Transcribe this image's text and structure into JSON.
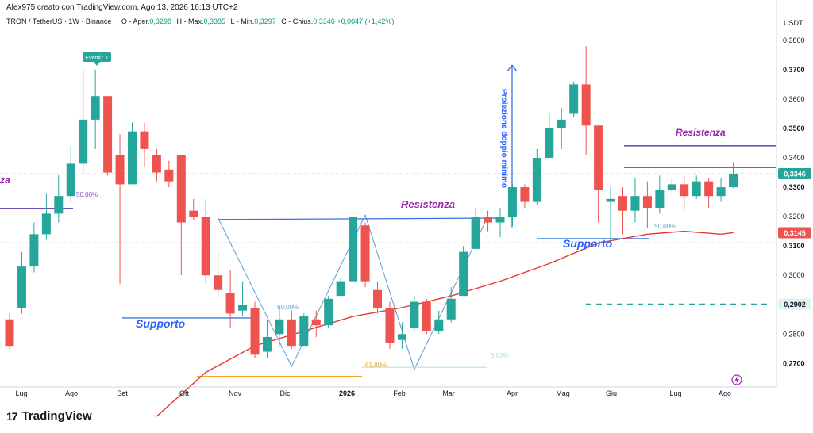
{
  "header": {
    "author_line": "Alex975 creato con TradingView.com, Ago 13, 2026 16:13 UTC+2",
    "symbol": "TRON / TetherUS · 1W · Binance",
    "open_label": "O - Aper.",
    "open": "0,3298",
    "high_label": "H - Max.",
    "high": "0,3385",
    "low_label": "L - Min.",
    "low": "0,3297",
    "close_label": "C - Chius.",
    "close": "0,3346",
    "change": "+0,0047 (+1,42%)"
  },
  "brand": {
    "logo_mark": "17",
    "name": "TradingView"
  },
  "colors": {
    "up": "#26a69a",
    "down": "#ef5350",
    "ma": "#e53935",
    "support": "#3a7bd5",
    "resistance_text": "#9c27b0"
  },
  "chart_data": {
    "type": "candlestick",
    "unit": "USDT",
    "ylim": [
      0.262,
      0.384
    ],
    "y_ticks": [
      "0,3800",
      "0,3700",
      "0,3600",
      "0,3500",
      "0,3400",
      "0,3300",
      "0,3200",
      "0,3100",
      "0,3000",
      "0,2900",
      "0,2800",
      "0,2700"
    ],
    "x_labels": [
      "Lug",
      "Ago",
      "Set",
      "Ott",
      "Nov",
      "Dic",
      "2026",
      "Feb",
      "Mar",
      "Apr",
      "Mag",
      "Giu",
      "Lug",
      "Ago"
    ],
    "candles": [
      [
        0.285,
        0.276,
        0.287,
        0.275
      ],
      [
        0.289,
        0.303,
        0.308,
        0.287
      ],
      [
        0.303,
        0.314,
        0.318,
        0.301
      ],
      [
        0.314,
        0.321,
        0.328,
        0.312
      ],
      [
        0.321,
        0.327,
        0.334,
        0.318
      ],
      [
        0.327,
        0.338,
        0.344,
        0.325
      ],
      [
        0.338,
        0.353,
        0.37,
        0.335
      ],
      [
        0.353,
        0.361,
        0.37,
        0.343
      ],
      [
        0.361,
        0.335,
        0.361,
        0.334
      ],
      [
        0.341,
        0.331,
        0.348,
        0.297
      ],
      [
        0.331,
        0.349,
        0.352,
        0.331
      ],
      [
        0.349,
        0.343,
        0.352,
        0.337
      ],
      [
        0.341,
        0.335,
        0.343,
        0.332
      ],
      [
        0.336,
        0.332,
        0.339,
        0.33
      ],
      [
        0.341,
        0.318,
        0.341,
        0.3
      ],
      [
        0.322,
        0.32,
        0.326,
        0.319
      ],
      [
        0.32,
        0.3,
        0.326,
        0.297
      ],
      [
        0.3,
        0.295,
        0.308,
        0.292
      ],
      [
        0.294,
        0.287,
        0.302,
        0.282
      ],
      [
        0.288,
        0.29,
        0.298,
        0.286
      ],
      [
        0.289,
        0.273,
        0.291,
        0.272
      ],
      [
        0.274,
        0.279,
        0.285,
        0.272
      ],
      [
        0.28,
        0.285,
        0.29,
        0.276
      ],
      [
        0.285,
        0.276,
        0.288,
        0.275
      ],
      [
        0.276,
        0.286,
        0.287,
        0.276
      ],
      [
        0.285,
        0.283,
        0.288,
        0.279
      ],
      [
        0.283,
        0.292,
        0.293,
        0.282
      ],
      [
        0.293,
        0.298,
        0.299,
        0.293
      ],
      [
        0.298,
        0.32,
        0.321,
        0.297
      ],
      [
        0.317,
        0.298,
        0.318,
        0.296
      ],
      [
        0.295,
        0.289,
        0.298,
        0.287
      ],
      [
        0.289,
        0.277,
        0.291,
        0.275
      ],
      [
        0.278,
        0.28,
        0.284,
        0.275
      ],
      [
        0.282,
        0.291,
        0.293,
        0.281
      ],
      [
        0.291,
        0.281,
        0.292,
        0.28
      ],
      [
        0.281,
        0.285,
        0.288,
        0.28
      ],
      [
        0.285,
        0.292,
        0.296,
        0.284
      ],
      [
        0.293,
        0.308,
        0.31,
        0.294
      ],
      [
        0.309,
        0.32,
        0.323,
        0.31
      ],
      [
        0.32,
        0.318,
        0.322,
        0.315
      ],
      [
        0.318,
        0.32,
        0.323,
        0.313
      ],
      [
        0.32,
        0.33,
        0.331,
        0.317
      ],
      [
        0.33,
        0.325,
        0.331,
        0.323
      ],
      [
        0.325,
        0.34,
        0.343,
        0.324
      ],
      [
        0.34,
        0.35,
        0.355,
        0.341
      ],
      [
        0.35,
        0.353,
        0.357,
        0.343
      ],
      [
        0.355,
        0.365,
        0.366,
        0.354
      ],
      [
        0.365,
        0.351,
        0.378,
        0.341
      ],
      [
        0.351,
        0.329,
        0.351,
        0.318
      ],
      [
        0.325,
        0.326,
        0.33,
        0.311
      ],
      [
        0.327,
        0.322,
        0.33,
        0.314
      ],
      [
        0.322,
        0.327,
        0.333,
        0.318
      ],
      [
        0.327,
        0.323,
        0.332,
        0.316
      ],
      [
        0.323,
        0.329,
        0.334,
        0.321
      ],
      [
        0.329,
        0.331,
        0.333,
        0.328
      ],
      [
        0.331,
        0.327,
        0.334,
        0.322
      ],
      [
        0.327,
        0.332,
        0.334,
        0.326
      ],
      [
        0.332,
        0.327,
        0.333,
        0.323
      ],
      [
        0.327,
        0.33,
        0.333,
        0.325
      ],
      [
        0.33,
        0.3346,
        0.3385,
        0.3297
      ]
    ],
    "moving_average": [
      [
        12,
        0.252
      ],
      [
        16,
        0.267
      ],
      [
        20,
        0.276
      ],
      [
        24,
        0.281
      ],
      [
        28,
        0.286
      ],
      [
        32,
        0.289
      ],
      [
        36,
        0.293
      ],
      [
        40,
        0.298
      ],
      [
        44,
        0.304
      ],
      [
        48,
        0.311
      ],
      [
        52,
        0.314
      ],
      [
        55,
        0.315
      ],
      [
        58,
        0.314
      ],
      [
        59,
        0.3145
      ]
    ],
    "price_labels": {
      "last": "0,3346",
      "ma": "0,3145",
      "target": "0,2902"
    },
    "annotations": {
      "resistance_1": "Resistenza",
      "resistance_2": "Resistenza",
      "support_1": "Supporto",
      "support_2": "Supporto",
      "cut_left": "za",
      "fib_50_a": "50,00%",
      "fib_50_b": "50,00%",
      "fib_50_c": "50,00%",
      "fib_618": "61,80%",
      "fib_faint": "5,00%",
      "projection": "Proiezione doppio minimo",
      "event": "Eventi : 1"
    }
  }
}
